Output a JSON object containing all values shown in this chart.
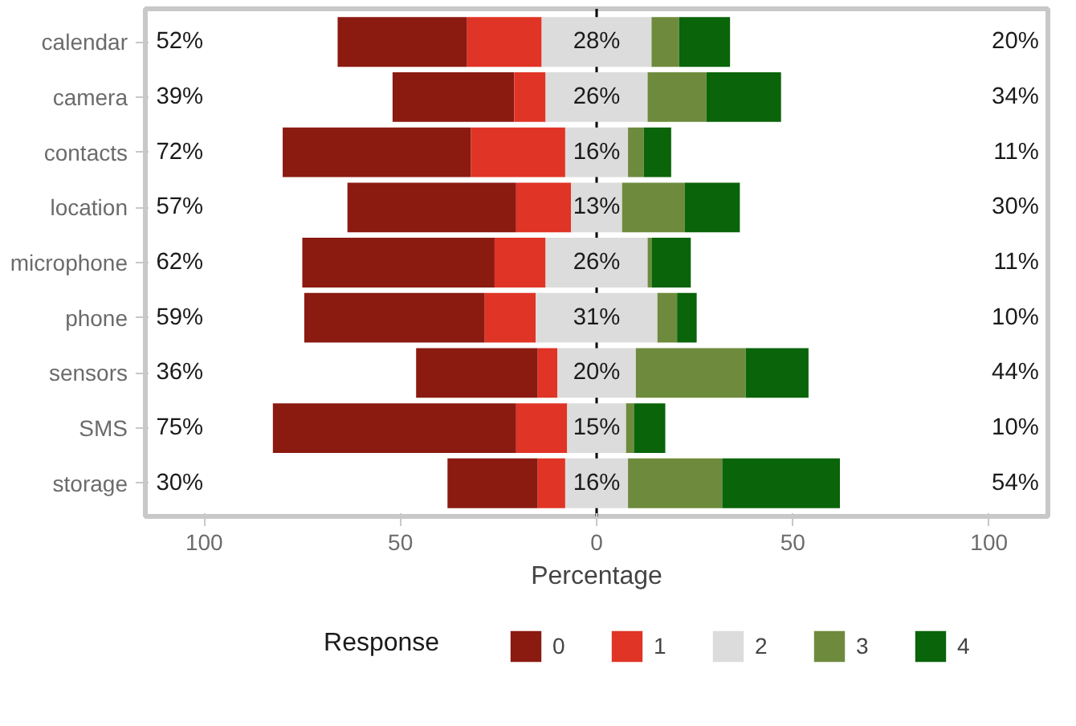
{
  "chart_data": {
    "type": "bar",
    "orientation": "horizontal",
    "xlabel": "Percentage",
    "legend_title": "Response",
    "legend": "bottom",
    "categories": [
      "calendar",
      "camera",
      "contacts",
      "location",
      "microphone",
      "phone",
      "sensors",
      "SMS",
      "storage"
    ],
    "series": [
      {
        "name": "0",
        "color": "#8b1a11",
        "values": [
          33,
          31,
          48,
          43,
          49,
          46,
          31,
          62,
          23
        ],
        "base": [
          -66,
          -52,
          -80,
          -63.5,
          -75,
          -74.5,
          -46,
          -82.5,
          -38
        ]
      },
      {
        "name": "1",
        "color": "#e03426",
        "values": [
          19,
          8,
          24,
          14,
          13,
          13,
          5,
          13,
          7
        ],
        "base": [
          -33,
          -21,
          -32,
          -20.5,
          -26,
          -28.5,
          -15,
          -20.5,
          -15
        ]
      },
      {
        "name": "2",
        "color": "#dcdcdc",
        "values": [
          28,
          26,
          16,
          13,
          26,
          31,
          20,
          15,
          16
        ],
        "base": [
          -14,
          -13,
          -8,
          -6.5,
          -13,
          -15.5,
          -10,
          -7.5,
          -8
        ],
        "value_labels": [
          "28%",
          "26%",
          "16%",
          "13%",
          "26%",
          "31%",
          "20%",
          "15%",
          "16%"
        ]
      },
      {
        "name": "3",
        "color": "#6e8b3d",
        "values": [
          7,
          15,
          4,
          16,
          1,
          5,
          28,
          2,
          24
        ],
        "base": [
          14,
          13,
          8,
          6.5,
          13,
          15.5,
          10,
          7.5,
          8
        ]
      },
      {
        "name": "4",
        "color": "#0a640a",
        "values": [
          13,
          19,
          7,
          14,
          10,
          5,
          16,
          8,
          30
        ],
        "base": [
          21,
          28,
          12,
          22.5,
          14,
          20.5,
          38,
          9.5,
          32
        ]
      }
    ],
    "xlim": [
      -115,
      115
    ],
    "xticks": [
      {
        "value": -100,
        "label": "100"
      },
      {
        "value": -50,
        "label": "50"
      },
      0,
      50,
      100
    ],
    "ref_lines": [
      {
        "axis": "x",
        "value": 0,
        "color": "#000000"
      }
    ],
    "annotations": [
      "52%",
      "39%",
      "72%",
      "57%",
      "62%",
      "59%",
      "36%",
      "75%",
      "30%",
      "20%",
      "34%",
      "11%",
      "30%",
      "11%",
      "10%",
      "44%",
      "10%",
      "54%"
    ],
    "grid": false
  }
}
